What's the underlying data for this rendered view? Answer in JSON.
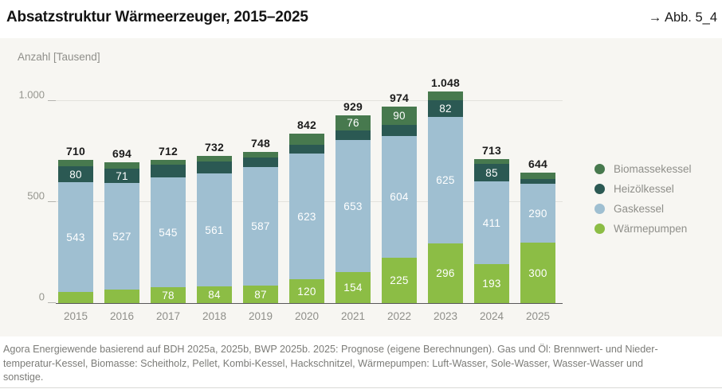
{
  "header": {
    "title": "Absatzstruktur Wärmeerzeuger, 2015–2025",
    "figure_ref": "→ Abb. 5_4"
  },
  "axis_title": "Anzahl [Tausend]",
  "chart_data": {
    "type": "bar",
    "stacked": true,
    "title": "Absatzstruktur Wärmeerzeuger, 2015–2025",
    "ylabel": "Anzahl [Tausend]",
    "xlabel": "",
    "ylim": [
      0,
      1180
    ],
    "grid": "horizontal",
    "legend_position": "right",
    "categories": [
      "2015",
      "2016",
      "2017",
      "2018",
      "2019",
      "2020",
      "2021",
      "2022",
      "2023",
      "2024",
      "2025"
    ],
    "series": [
      {
        "name": "Biomassekessel",
        "color": "#47794e",
        "values": [
          30,
          30,
          25,
          27,
          26,
          55,
          76,
          90,
          45,
          24,
          30
        ],
        "labels": [
          null,
          null,
          null,
          null,
          null,
          null,
          "76",
          "90",
          null,
          null,
          null
        ]
      },
      {
        "name": "Heizölkessel",
        "color": "#2b5953",
        "values": [
          80,
          71,
          64,
          60,
          48,
          44,
          46,
          55,
          82,
          85,
          24
        ],
        "labels": [
          "80",
          "71",
          null,
          null,
          null,
          null,
          null,
          null,
          "82",
          "85",
          null
        ]
      },
      {
        "name": "Gaskessel",
        "color": "#9fbfd1",
        "values": [
          543,
          527,
          545,
          561,
          587,
          623,
          653,
          604,
          625,
          411,
          290
        ],
        "labels": [
          "543",
          "527",
          "545",
          "561",
          "587",
          "623",
          "653",
          "604",
          "625",
          "411",
          "290"
        ]
      },
      {
        "name": "Wärmepumpen",
        "color": "#8cbd45",
        "values": [
          57,
          66,
          78,
          84,
          87,
          120,
          154,
          225,
          296,
          193,
          300
        ],
        "labels": [
          null,
          null,
          "78",
          "84",
          "87",
          "120",
          "154",
          "225",
          "296",
          "193",
          "300"
        ]
      }
    ],
    "totals": [
      "710",
      "694",
      "712",
      "732",
      "748",
      "842",
      "929",
      "974",
      "1.048",
      "713",
      "644"
    ],
    "yticks": [
      {
        "value": 0,
        "label": "0"
      },
      {
        "value": 500,
        "label": "500"
      },
      {
        "value": 1000,
        "label": "1.000"
      }
    ]
  },
  "footer": {
    "lines": [
      "Agora Energiewende basierend auf BDH 2025a, 2025b, BWP 2025b. 2025: Prognose (eigene Berechnungen). Gas und Öl: Brennwert- und Nieder-",
      "temperatur-Kessel, Biomasse: Scheitholz, Pellet, Kombi-Kessel, Hackschnitzel, Wärmepumpen: Luft-Wasser, Sole-Wasser, Wasser-Wasser und",
      "sonstige."
    ]
  },
  "colors": {
    "panel_background": "#f7f6f2",
    "biomassekessel": "#47794e",
    "heizoelkessel": "#2b5953",
    "gaskessel": "#9fbfd1",
    "waermepumpen": "#8cbd45"
  }
}
